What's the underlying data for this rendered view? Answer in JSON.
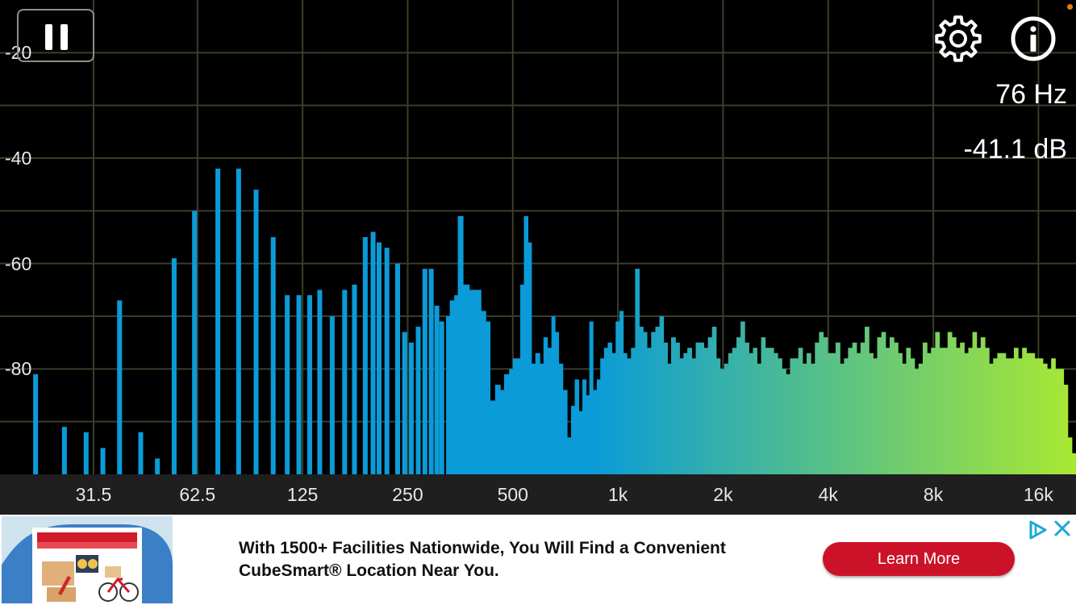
{
  "app": {
    "readout": {
      "frequency": "76 Hz",
      "level": "-41.1 dB"
    },
    "icons": {
      "pause": "pause-icon",
      "settings": "gear-icon",
      "info": "info-icon"
    },
    "colors": {
      "background": "#000000",
      "grid": "#3b3d2a",
      "bar_low": "#0a9bd8",
      "bar_high": "#a9e832",
      "axis_bar": "#1f1f1f"
    }
  },
  "chart_data": {
    "type": "bar",
    "x_scale": "log",
    "x_unit": "Hz",
    "y_unit": "dB",
    "xlim": [
      17,
      20500
    ],
    "ylim": [
      -100,
      -10
    ],
    "y_ticks": [
      "-20",
      "-40",
      "-60",
      "-80"
    ],
    "y_tick_values": [
      -20,
      -40,
      -60,
      -80
    ],
    "x_ticks": [
      "31.5",
      "62.5",
      "125",
      "250",
      "500",
      "1k",
      "2k",
      "4k",
      "8k",
      "16k"
    ],
    "x_tick_values": [
      31.5,
      62.5,
      125,
      250,
      500,
      1000,
      2000,
      4000,
      8000,
      16000
    ],
    "grid": true,
    "series": [
      {
        "values": [
          [
            21.5,
            -81
          ],
          [
            26,
            -91
          ],
          [
            30,
            -92
          ],
          [
            33.5,
            -95
          ],
          [
            37.4,
            -67
          ],
          [
            43,
            -92
          ],
          [
            48,
            -97
          ],
          [
            53.6,
            -59
          ],
          [
            61.3,
            -50
          ],
          [
            71.5,
            -42
          ],
          [
            82,
            -42
          ],
          [
            92,
            -46
          ],
          [
            103,
            -55
          ],
          [
            113,
            -66
          ],
          [
            122,
            -66
          ],
          [
            131,
            -66
          ],
          [
            140,
            -65
          ],
          [
            152,
            -70
          ],
          [
            165,
            -65
          ],
          [
            176,
            -64
          ],
          [
            189,
            -55
          ],
          [
            199,
            -54
          ],
          [
            207,
            -56
          ],
          [
            218,
            -57
          ],
          [
            234,
            -60
          ],
          [
            245,
            -73
          ],
          [
            256,
            -75
          ],
          [
            268,
            -72
          ],
          [
            280,
            -61
          ],
          [
            292,
            -61
          ],
          [
            303,
            -68
          ],
          [
            313,
            -71
          ],
          [
            322,
            -70
          ],
          [
            330,
            -67
          ],
          [
            340,
            -66
          ],
          [
            348,
            -51
          ],
          [
            360,
            -64
          ],
          [
            375,
            -65
          ],
          [
            390,
            -65
          ],
          [
            405,
            -69
          ],
          [
            418,
            -71
          ],
          [
            430,
            -86
          ],
          [
            445,
            -83
          ],
          [
            460,
            -84
          ],
          [
            472,
            -81
          ],
          [
            488,
            -80
          ],
          [
            500,
            -78
          ],
          [
            510,
            -78
          ],
          [
            525,
            -64
          ],
          [
            538,
            -51
          ],
          [
            552,
            -56
          ],
          [
            565,
            -79
          ],
          [
            580,
            -77
          ],
          [
            597,
            -79
          ],
          [
            612,
            -74
          ],
          [
            628,
            -76
          ],
          [
            645,
            -70
          ],
          [
            660,
            -73
          ],
          [
            676,
            -79
          ],
          [
            695,
            -84
          ],
          [
            715,
            -93
          ],
          [
            734,
            -87
          ],
          [
            752,
            -82
          ],
          [
            772,
            -88
          ],
          [
            791,
            -82
          ],
          [
            810,
            -85
          ],
          [
            828,
            -71
          ],
          [
            848,
            -84
          ],
          [
            870,
            -82
          ],
          [
            890,
            -78
          ],
          [
            912,
            -76
          ],
          [
            935,
            -75
          ],
          [
            960,
            -77
          ],
          [
            985,
            -71
          ],
          [
            1010,
            -69
          ],
          [
            1035,
            -77
          ],
          [
            1060,
            -78
          ],
          [
            1090,
            -76
          ],
          [
            1120,
            -61
          ],
          [
            1150,
            -72
          ],
          [
            1180,
            -73
          ],
          [
            1210,
            -76
          ],
          [
            1245,
            -73
          ],
          [
            1280,
            -72
          ],
          [
            1315,
            -70
          ],
          [
            1350,
            -75
          ],
          [
            1385,
            -79
          ],
          [
            1420,
            -74
          ],
          [
            1460,
            -75
          ],
          [
            1500,
            -78
          ],
          [
            1540,
            -77
          ],
          [
            1580,
            -76
          ],
          [
            1625,
            -78
          ],
          [
            1670,
            -75
          ],
          [
            1715,
            -75
          ],
          [
            1760,
            -76
          ],
          [
            1810,
            -74
          ],
          [
            1860,
            -72
          ],
          [
            1910,
            -78
          ],
          [
            1960,
            -80
          ],
          [
            2015,
            -79
          ],
          [
            2070,
            -77
          ],
          [
            2125,
            -76
          ],
          [
            2185,
            -74
          ],
          [
            2245,
            -71
          ],
          [
            2305,
            -75
          ],
          [
            2370,
            -77
          ],
          [
            2435,
            -76
          ],
          [
            2500,
            -79
          ],
          [
            2570,
            -74
          ],
          [
            2640,
            -76
          ],
          [
            2715,
            -76
          ],
          [
            2790,
            -77
          ],
          [
            2865,
            -78
          ],
          [
            2945,
            -80
          ],
          [
            3025,
            -81
          ],
          [
            3110,
            -78
          ],
          [
            3195,
            -78
          ],
          [
            3285,
            -76
          ],
          [
            3375,
            -79
          ],
          [
            3470,
            -77
          ],
          [
            3565,
            -79
          ],
          [
            3665,
            -75
          ],
          [
            3765,
            -73
          ],
          [
            3870,
            -74
          ],
          [
            3980,
            -77
          ],
          [
            4090,
            -77
          ],
          [
            4200,
            -75
          ],
          [
            4320,
            -79
          ],
          [
            4440,
            -78
          ],
          [
            4560,
            -76
          ],
          [
            4690,
            -75
          ],
          [
            4820,
            -77
          ],
          [
            4950,
            -75
          ],
          [
            5090,
            -72
          ],
          [
            5230,
            -77
          ],
          [
            5375,
            -78
          ],
          [
            5525,
            -74
          ],
          [
            5680,
            -73
          ],
          [
            5835,
            -76
          ],
          [
            6000,
            -74
          ],
          [
            6165,
            -75
          ],
          [
            6335,
            -77
          ],
          [
            6510,
            -79
          ],
          [
            6690,
            -76
          ],
          [
            6875,
            -78
          ],
          [
            7065,
            -80
          ],
          [
            7260,
            -79
          ],
          [
            7460,
            -75
          ],
          [
            7670,
            -77
          ],
          [
            7880,
            -76
          ],
          [
            8100,
            -73
          ],
          [
            8325,
            -76
          ],
          [
            8555,
            -76
          ],
          [
            8790,
            -73
          ],
          [
            9035,
            -74
          ],
          [
            9285,
            -76
          ],
          [
            9540,
            -75
          ],
          [
            9805,
            -77
          ],
          [
            10075,
            -76
          ],
          [
            10355,
            -73
          ],
          [
            10640,
            -76
          ],
          [
            10935,
            -74
          ],
          [
            11240,
            -76
          ],
          [
            11550,
            -79
          ],
          [
            11870,
            -78
          ],
          [
            12200,
            -77
          ],
          [
            12535,
            -77
          ],
          [
            12885,
            -78
          ],
          [
            13240,
            -78
          ],
          [
            13605,
            -76
          ],
          [
            13985,
            -78
          ],
          [
            14370,
            -76
          ],
          [
            14770,
            -77
          ],
          [
            15175,
            -77
          ],
          [
            15600,
            -78
          ],
          [
            16030,
            -78
          ],
          [
            16470,
            -79
          ],
          [
            16930,
            -80
          ],
          [
            17395,
            -78
          ],
          [
            17880,
            -80
          ],
          [
            18375,
            -80
          ],
          [
            18880,
            -83
          ],
          [
            19405,
            -93
          ],
          [
            19940,
            -96
          ],
          [
            20490,
            -99
          ]
        ]
      }
    ]
  },
  "ad": {
    "text_line1": "With 1500+ Facilities Nationwide, You Will Find a Convenient",
    "text_line2": "CubeSmart® Location Near You.",
    "button_label": "Learn More",
    "button_color": "#cc1229",
    "icons": {
      "adchoices": "adchoices-icon",
      "close": "close-icon"
    }
  }
}
